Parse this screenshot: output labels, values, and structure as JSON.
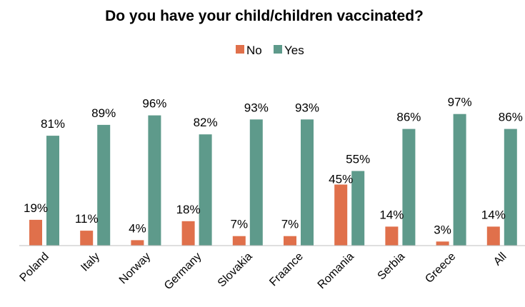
{
  "chart_data": {
    "type": "bar",
    "title": "Do you have your child/children vaccinated?",
    "categories": [
      "Poland",
      "Italy",
      "Norway",
      "Germany",
      "Slovakia",
      "Fraance",
      "Romania",
      "Serbia",
      "Greece",
      "All"
    ],
    "series": [
      {
        "name": "No",
        "values": [
          19,
          11,
          4,
          18,
          7,
          7,
          45,
          14,
          3,
          14
        ],
        "labels": [
          "19%",
          "11%",
          "4%",
          "18%",
          "7%",
          "7%",
          "45%",
          "14%",
          "3%",
          "14%"
        ],
        "color": "#E0704B"
      },
      {
        "name": "Yes",
        "values": [
          81,
          89,
          96,
          82,
          93,
          93,
          55,
          86,
          97,
          86
        ],
        "labels": [
          "81%",
          "89%",
          "96%",
          "82%",
          "93%",
          "93%",
          "55%",
          "86%",
          "97%",
          "86%"
        ],
        "color": "#5E9A8B"
      }
    ],
    "ylim": [
      0,
      100
    ],
    "xlabel": "",
    "ylabel": "",
    "grid": false,
    "legend_position": "top-center",
    "axis_color": "#BFBFBF"
  }
}
